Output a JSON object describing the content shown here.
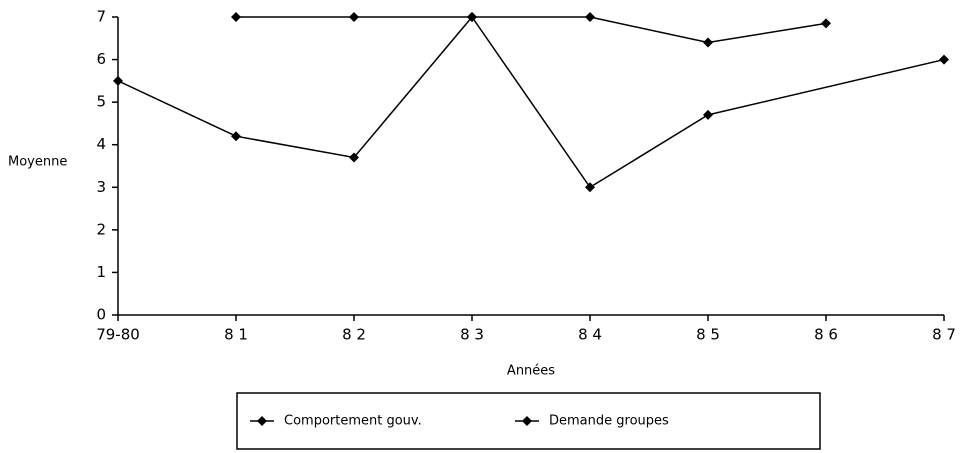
{
  "chart_data": {
    "type": "line",
    "categories": [
      "79-80",
      "8 1",
      "8 2",
      "8 3",
      "8 4",
      "8 5",
      "8 6",
      "8 7"
    ],
    "series": [
      {
        "name": "Comportement gouv.",
        "color": "#000000",
        "values": [
          5.5,
          4.2,
          3.7,
          7,
          3,
          4.7,
          null,
          6
        ]
      },
      {
        "name": "Demande groupes",
        "color": "#000000",
        "values": [
          null,
          7,
          7,
          7,
          7,
          6.4,
          6.85,
          null
        ]
      }
    ],
    "ylim": [
      0,
      7
    ],
    "yticks": [
      0,
      1,
      2,
      3,
      4,
      5,
      6,
      7
    ],
    "ylabel": "Moyenne",
    "xlabel": "Années"
  }
}
